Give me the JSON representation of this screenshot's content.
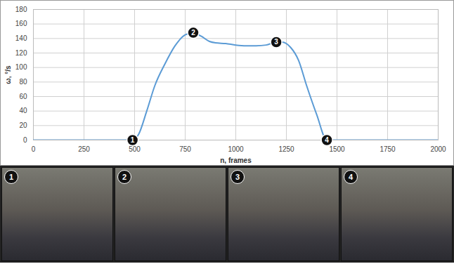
{
  "chart_data": {
    "type": "line",
    "x_label": "n, frames",
    "y_label": "ω, °/s",
    "x": [
      0,
      250,
      490,
      520,
      560,
      600,
      650,
      700,
      750,
      790,
      830,
      870,
      900,
      950,
      1000,
      1050,
      1100,
      1150,
      1200,
      1230,
      1270,
      1310,
      1350,
      1400,
      1450,
      1500,
      1750,
      2000
    ],
    "series": [
      {
        "name": "ω",
        "color": "#5b9bd5",
        "values": [
          0,
          0,
          0,
          8,
          40,
          75,
          105,
          130,
          145,
          148,
          143,
          136,
          134,
          133,
          131,
          130,
          130,
          131,
          135,
          135,
          128,
          110,
          75,
          35,
          0,
          0,
          0,
          0
        ]
      }
    ],
    "xlim": [
      0,
      2000
    ],
    "xticks": [
      0,
      250,
      500,
      750,
      1000,
      1250,
      1500,
      1750,
      2000
    ],
    "ylim": [
      0,
      180
    ],
    "yticks": [
      0,
      20,
      40,
      60,
      80,
      100,
      120,
      140,
      160,
      180
    ],
    "grid": true,
    "annotations": [
      {
        "x": 490,
        "y": 0,
        "text": "1"
      },
      {
        "x": 790,
        "y": 148,
        "text": "2"
      },
      {
        "x": 1200,
        "y": 135,
        "text": "3"
      },
      {
        "x": 1450,
        "y": 0,
        "text": "4"
      }
    ]
  },
  "photo_panels": [
    "1",
    "2",
    "3",
    "4"
  ]
}
